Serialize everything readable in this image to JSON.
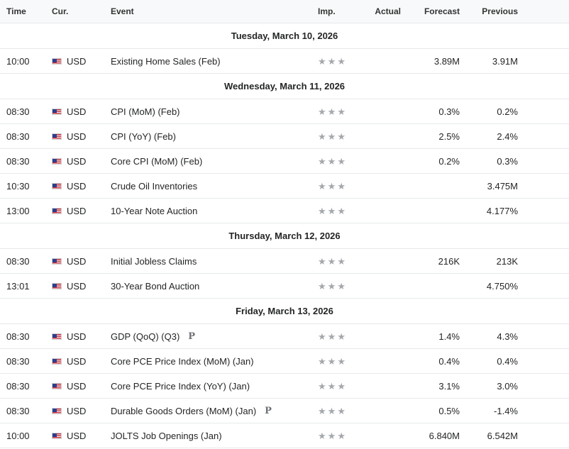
{
  "headers": {
    "time": "Time",
    "currency": "Cur.",
    "event": "Event",
    "importance": "Imp.",
    "actual": "Actual",
    "forecast": "Forecast",
    "previous": "Previous"
  },
  "days": [
    {
      "date": "Tuesday, March 10, 2026",
      "events": [
        {
          "time": "10:00",
          "currency": "USD",
          "event": "Existing Home Sales (Feb)",
          "prelim": "",
          "importance": 3,
          "actual": "",
          "forecast": "3.89M",
          "previous": "3.91M"
        }
      ]
    },
    {
      "date": "Wednesday, March 11, 2026",
      "events": [
        {
          "time": "08:30",
          "currency": "USD",
          "event": "CPI (MoM) (Feb)",
          "prelim": "",
          "importance": 3,
          "actual": "",
          "forecast": "0.3%",
          "previous": "0.2%"
        },
        {
          "time": "08:30",
          "currency": "USD",
          "event": "CPI (YoY) (Feb)",
          "prelim": "",
          "importance": 3,
          "actual": "",
          "forecast": "2.5%",
          "previous": "2.4%"
        },
        {
          "time": "08:30",
          "currency": "USD",
          "event": "Core CPI (MoM) (Feb)",
          "prelim": "",
          "importance": 3,
          "actual": "",
          "forecast": "0.2%",
          "previous": "0.3%"
        },
        {
          "time": "10:30",
          "currency": "USD",
          "event": "Crude Oil Inventories",
          "prelim": "",
          "importance": 3,
          "actual": "",
          "forecast": "",
          "previous": "3.475M"
        },
        {
          "time": "13:00",
          "currency": "USD",
          "event": "10-Year Note Auction",
          "prelim": "",
          "importance": 3,
          "actual": "",
          "forecast": "",
          "previous": "4.177%"
        }
      ]
    },
    {
      "date": "Thursday, March 12, 2026",
      "events": [
        {
          "time": "08:30",
          "currency": "USD",
          "event": "Initial Jobless Claims",
          "prelim": "",
          "importance": 3,
          "actual": "",
          "forecast": "216K",
          "previous": "213K"
        },
        {
          "time": "13:01",
          "currency": "USD",
          "event": "30-Year Bond Auction",
          "prelim": "",
          "importance": 3,
          "actual": "",
          "forecast": "",
          "previous": "4.750%"
        }
      ]
    },
    {
      "date": "Friday, March 13, 2026",
      "events": [
        {
          "time": "08:30",
          "currency": "USD",
          "event": "GDP (QoQ) (Q3)",
          "prelim": "P",
          "importance": 3,
          "actual": "",
          "forecast": "1.4%",
          "previous": "4.3%"
        },
        {
          "time": "08:30",
          "currency": "USD",
          "event": "Core PCE Price Index (MoM) (Jan)",
          "prelim": "",
          "importance": 3,
          "actual": "",
          "forecast": "0.4%",
          "previous": "0.4%"
        },
        {
          "time": "08:30",
          "currency": "USD",
          "event": "Core PCE Price Index (YoY) (Jan)",
          "prelim": "",
          "importance": 3,
          "actual": "",
          "forecast": "3.1%",
          "previous": "3.0%"
        },
        {
          "time": "08:30",
          "currency": "USD",
          "event": "Durable Goods Orders (MoM) (Jan)",
          "prelim": "P",
          "importance": 3,
          "actual": "",
          "forecast": "0.5%",
          "previous": "-1.4%"
        },
        {
          "time": "10:00",
          "currency": "USD",
          "event": "JOLTS Job Openings (Jan)",
          "prelim": "",
          "importance": 3,
          "actual": "",
          "forecast": "6.840M",
          "previous": "6.542M"
        }
      ]
    }
  ],
  "icons": {
    "flag": "us-flag-icon",
    "importance": "star-icon",
    "prelim": "preliminary-p-icon"
  },
  "colors": {
    "star": "#a4a8ad",
    "header_bg": "#f8f9fa",
    "border": "#e6e9eb"
  }
}
